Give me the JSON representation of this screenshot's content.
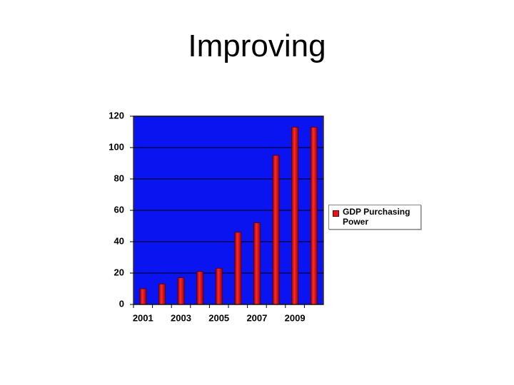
{
  "title": "Improving",
  "chart_data": {
    "type": "bar",
    "categories": [
      "2001",
      null,
      "2003",
      null,
      "2005",
      null,
      "2007",
      null,
      "2009",
      null
    ],
    "series": [
      {
        "name": "GDP Purchasing Power",
        "color": "#e8141c",
        "values": [
          10,
          13,
          17,
          21,
          23,
          46,
          52,
          95,
          113,
          113
        ]
      }
    ],
    "ylim": [
      0,
      120
    ],
    "yticks": [
      0,
      20,
      40,
      60,
      80,
      100,
      120
    ],
    "grid": true,
    "legend": "right",
    "plot_background": "#0a14f0"
  }
}
